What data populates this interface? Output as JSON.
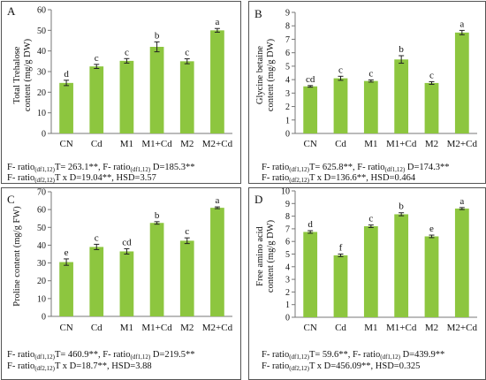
{
  "chart_data": [
    {
      "type": "bar",
      "panel_letter": "A",
      "categories": [
        "CN",
        "Cd",
        "M1",
        "M1+Cd",
        "M2",
        "M2+Cd"
      ],
      "values": [
        24.5,
        32.5,
        35.2,
        42.0,
        35.0,
        50.0
      ],
      "errors": [
        1.3,
        1.0,
        1.1,
        2.4,
        1.2,
        0.9
      ],
      "letters": [
        "d",
        "c",
        "c",
        "b",
        "c",
        "a"
      ],
      "ylabel": "Total Trehalose content (mg/g DW)",
      "ylabel_lines": [
        "Total Trehalose",
        "content (mg/g DW)"
      ],
      "ylim": [
        0,
        60
      ],
      "yticks": [
        0,
        10,
        20,
        30,
        40,
        50,
        60
      ],
      "color": "#8DC63F",
      "stats": {
        "l1_p1": "F- ratio",
        "l1_s1": "(df1,12)",
        "l1_p2": "T= 263.1**, F- ratio",
        "l1_s2": "(df1,12)",
        "l1_p3": " D=185.3**",
        "l2_p1": "F- ratio",
        "l2_s1": "(df2,12)",
        "l2_p2": "T x D=19.04**, HSD=3.57"
      }
    },
    {
      "type": "bar",
      "panel_letter": "B",
      "categories": [
        "CN",
        "Cd",
        "M1",
        "M1+Cd",
        "M2",
        "M2+Cd"
      ],
      "values": [
        3.5,
        4.1,
        3.9,
        5.5,
        3.75,
        7.5
      ],
      "errors": [
        0.06,
        0.15,
        0.08,
        0.28,
        0.1,
        0.16
      ],
      "letters": [
        "cd",
        "c",
        "c",
        "b",
        "c",
        "a"
      ],
      "ylabel": "Glycine betaine content (mg/g DW)",
      "ylabel_lines": [
        "Glycine betaine",
        "content (mg/g DW)"
      ],
      "ylim": [
        0,
        9
      ],
      "yticks": [
        0,
        1,
        2,
        3,
        4,
        5,
        6,
        7,
        8,
        9
      ],
      "color": "#8DC63F",
      "stats": {
        "l1_p1": "F- ratio",
        "l1_s1": "(df1,12)",
        "l1_p2": "T= 625.8**, F- ratio",
        "l1_s2": "(df1,12)",
        "l1_p3": " D=174.3**",
        "l2_p1": "F- ratio",
        "l2_s1": "(df2,12)",
        "l2_p2": "T x D=136.6**, HSD=0.464"
      }
    },
    {
      "type": "bar",
      "panel_letter": "C",
      "categories": [
        "CN",
        "Cd",
        "M1",
        "M1+Cd",
        "M2",
        "M2+Cd"
      ],
      "values": [
        30.5,
        39.0,
        36.5,
        52.5,
        42.5,
        61.0
      ],
      "errors": [
        1.8,
        1.5,
        1.5,
        0.7,
        1.6,
        0.5
      ],
      "letters": [
        "e",
        "c",
        "cd",
        "b",
        "c",
        "a"
      ],
      "ylabel": "Proline content (mg/g FW)",
      "ylabel_lines": [
        "Proline content (mg/g FW)"
      ],
      "ylim": [
        0,
        70
      ],
      "yticks": [
        0,
        10,
        20,
        30,
        40,
        50,
        60,
        70
      ],
      "color": "#8DC63F",
      "stats": {
        "l1_p1": "F- ratio",
        "l1_s1": "(df1,12)",
        "l1_p2": "T= 460.9**, F- ratio",
        "l1_s2": "(df1,12)",
        "l1_p3": " D=219.5**",
        "l2_p1": "F- ratio",
        "l2_s1": "(df2,12)",
        "l2_p2": "T x D=18.7**, HSD=3.88"
      }
    },
    {
      "type": "bar",
      "panel_letter": "D",
      "categories": [
        "CN",
        "Cd",
        "M1",
        "M1+Cd",
        "M2",
        "M2+Cd"
      ],
      "values": [
        6.75,
        4.9,
        7.2,
        8.15,
        6.4,
        8.6
      ],
      "errors": [
        0.1,
        0.1,
        0.1,
        0.12,
        0.1,
        0.08
      ],
      "letters": [
        "d",
        "f",
        "c",
        "b",
        "e",
        "a"
      ],
      "ylabel": "Free amino acid content (mg/g DW)",
      "ylabel_lines": [
        "Free amino acid",
        "content (mg/g DW)"
      ],
      "ylim": [
        0,
        10
      ],
      "yticks": [
        0,
        1,
        2,
        3,
        4,
        5,
        6,
        7,
        8,
        9,
        10
      ],
      "color": "#8DC63F",
      "stats": {
        "l1_p1": "F- ratio",
        "l1_s1": "(df1,12)",
        "l1_p2": "T= 59.6**, F- ratio",
        "l1_s2": "(df1,12)",
        "l1_p3": " D=439.9**",
        "l2_p1": "F- ratio",
        "l2_s1": "(df2,12)",
        "l2_p2": "T x D=456.09**, HSD=0.325"
      }
    }
  ]
}
